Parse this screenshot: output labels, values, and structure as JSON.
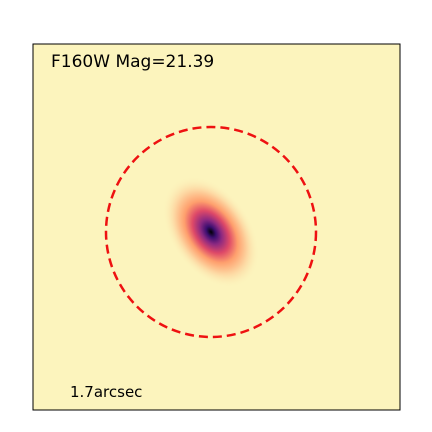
{
  "panel": {
    "title": "F160W Mag=21.39",
    "scale_label": "1.7arcsec"
  }
}
